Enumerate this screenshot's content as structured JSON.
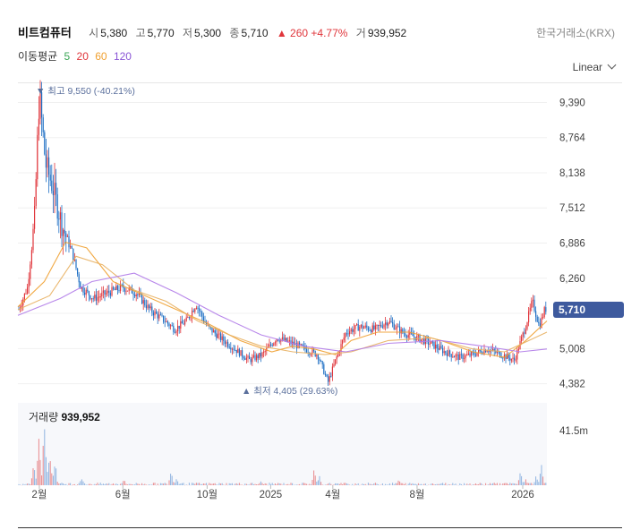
{
  "header": {
    "name": "비트컴퓨터",
    "open_label": "시",
    "open": "5,380",
    "high_label": "고",
    "high": "5,770",
    "low_label": "저",
    "low": "5,300",
    "close_label": "종",
    "close": "5,710",
    "change": "▲ 260 +4.77%",
    "volume_label": "거",
    "volume": "939,952"
  },
  "exchange": "한국거래소(KRX)",
  "scale_selector": "Linear",
  "moving_average": {
    "label": "이동평균",
    "periods": [
      "5",
      "20",
      "60",
      "120"
    ],
    "colors": [
      "#3aa655",
      "#e0353b",
      "#f0a030",
      "#8a55d6"
    ]
  },
  "colors": {
    "up": "#e0353b",
    "down": "#1e6fc4",
    "current_price_tag": "#3e5a9e"
  },
  "annotations": {
    "high": "▼ 최고 9,550 (-40.21%)",
    "low": "▲ 최저 4,405 (29.63%)"
  },
  "current_price": "5,710",
  "volume_panel": {
    "label": "거래량",
    "value": "939,952",
    "axis_label": "41.5m"
  },
  "chart_data": {
    "type": "candlestick",
    "title": "",
    "y_ticks": [
      4382,
      5008,
      5634,
      6260,
      6886,
      7512,
      8138,
      8764,
      9390
    ],
    "y_tick_labels": [
      "4,382",
      "5,008",
      "",
      "6,260",
      "6,886",
      "7,512",
      "8,138",
      "8,764",
      "9,390"
    ],
    "ylim": [
      4200,
      9700
    ],
    "x_tick_labels": [
      "2월",
      "6월",
      "10월",
      "2025",
      "4월",
      "8월",
      "2026"
    ],
    "x_tick_dates": [
      "2024-02",
      "2024-06",
      "2024-10",
      "2025-01",
      "2025-04",
      "2025-08",
      "2026-01"
    ],
    "x_range": [
      "2024-01",
      "2026-02"
    ],
    "price_trend": [
      [
        "2024-01-02",
        5700
      ],
      [
        "2024-01-15",
        6100
      ],
      [
        "2024-01-25",
        7300
      ],
      [
        "2024-02-01",
        9550
      ],
      [
        "2024-02-10",
        8300
      ],
      [
        "2024-02-20",
        7900
      ],
      [
        "2024-03-05",
        7200
      ],
      [
        "2024-03-20",
        6700
      ],
      [
        "2024-04-01",
        6100
      ],
      [
        "2024-04-20",
        5900
      ],
      [
        "2024-05-10",
        6000
      ],
      [
        "2024-06-01",
        6100
      ],
      [
        "2024-06-20",
        6000
      ],
      [
        "2024-07-10",
        5700
      ],
      [
        "2024-08-01",
        5500
      ],
      [
        "2024-08-15",
        5350
      ],
      [
        "2024-09-01",
        5500
      ],
      [
        "2024-09-15",
        5800
      ],
      [
        "2024-10-01",
        5400
      ],
      [
        "2024-10-20",
        5200
      ],
      [
        "2024-11-10",
        5000
      ],
      [
        "2024-12-01",
        4800
      ],
      [
        "2024-12-20",
        4900
      ],
      [
        "2025-01-10",
        5200
      ],
      [
        "2025-02-01",
        5100
      ],
      [
        "2025-02-20",
        5000
      ],
      [
        "2025-03-10",
        4900
      ],
      [
        "2025-03-25",
        4405
      ],
      [
        "2025-04-05",
        4800
      ],
      [
        "2025-04-20",
        5300
      ],
      [
        "2025-05-10",
        5400
      ],
      [
        "2025-06-01",
        5350
      ],
      [
        "2025-06-20",
        5500
      ],
      [
        "2025-07-10",
        5300
      ],
      [
        "2025-08-01",
        5200
      ],
      [
        "2025-08-20",
        5100
      ],
      [
        "2025-09-10",
        4950
      ],
      [
        "2025-10-01",
        4850
      ],
      [
        "2025-10-20",
        4900
      ],
      [
        "2025-11-10",
        5000
      ],
      [
        "2025-12-01",
        4900
      ],
      [
        "2025-12-20",
        4800
      ],
      [
        "2026-01-05",
        5400
      ],
      [
        "2026-01-15",
        5850
      ],
      [
        "2026-01-25",
        5400
      ],
      [
        "2026-02-02",
        5710
      ]
    ],
    "moving_averages": [
      {
        "period": 20,
        "values": [
          [
            0,
            5750
          ],
          [
            0.05,
            6200
          ],
          [
            0.09,
            6900
          ],
          [
            0.13,
            6800
          ],
          [
            0.18,
            6200
          ],
          [
            0.24,
            5950
          ],
          [
            0.3,
            5700
          ],
          [
            0.36,
            5450
          ],
          [
            0.42,
            5150
          ],
          [
            0.48,
            4950
          ],
          [
            0.52,
            5050
          ],
          [
            0.56,
            5000
          ],
          [
            0.6,
            4900
          ],
          [
            0.63,
            5150
          ],
          [
            0.68,
            5300
          ],
          [
            0.74,
            5300
          ],
          [
            0.8,
            5150
          ],
          [
            0.86,
            4950
          ],
          [
            0.92,
            4850
          ],
          [
            0.96,
            5150
          ],
          [
            1.0,
            5500
          ]
        ]
      },
      {
        "period": 60,
        "values": [
          [
            0,
            5700
          ],
          [
            0.06,
            5950
          ],
          [
            0.11,
            6650
          ],
          [
            0.16,
            6500
          ],
          [
            0.22,
            6050
          ],
          [
            0.28,
            5850
          ],
          [
            0.34,
            5500
          ],
          [
            0.4,
            5250
          ],
          [
            0.46,
            5050
          ],
          [
            0.52,
            4950
          ],
          [
            0.58,
            4900
          ],
          [
            0.63,
            4950
          ],
          [
            0.7,
            5150
          ],
          [
            0.78,
            5200
          ],
          [
            0.86,
            5000
          ],
          [
            0.92,
            4950
          ],
          [
            1.0,
            5300
          ]
        ]
      },
      {
        "period": 120,
        "values": [
          [
            0,
            5600
          ],
          [
            0.08,
            5900
          ],
          [
            0.14,
            6200
          ],
          [
            0.22,
            6350
          ],
          [
            0.3,
            6000
          ],
          [
            0.38,
            5600
          ],
          [
            0.46,
            5250
          ],
          [
            0.54,
            5050
          ],
          [
            0.62,
            4950
          ],
          [
            0.7,
            5100
          ],
          [
            0.8,
            5150
          ],
          [
            0.88,
            5050
          ],
          [
            0.95,
            4950
          ],
          [
            1.0,
            5000
          ]
        ]
      }
    ],
    "volume_ylim": [
      0,
      41500000
    ],
    "volume_spikes": [
      [
        0.04,
        0.8
      ],
      [
        0.05,
        1.0
      ],
      [
        0.06,
        0.7
      ],
      [
        0.03,
        0.5
      ],
      [
        0.07,
        0.45
      ],
      [
        0.12,
        0.15
      ],
      [
        0.2,
        0.1
      ],
      [
        0.29,
        0.25
      ],
      [
        0.3,
        0.12
      ],
      [
        0.46,
        0.08
      ],
      [
        0.56,
        0.3
      ],
      [
        0.57,
        0.15
      ],
      [
        0.72,
        0.1
      ],
      [
        0.9,
        0.06
      ],
      [
        0.95,
        0.25
      ],
      [
        0.96,
        0.12
      ],
      [
        0.98,
        0.2
      ],
      [
        0.99,
        0.35
      ]
    ]
  }
}
